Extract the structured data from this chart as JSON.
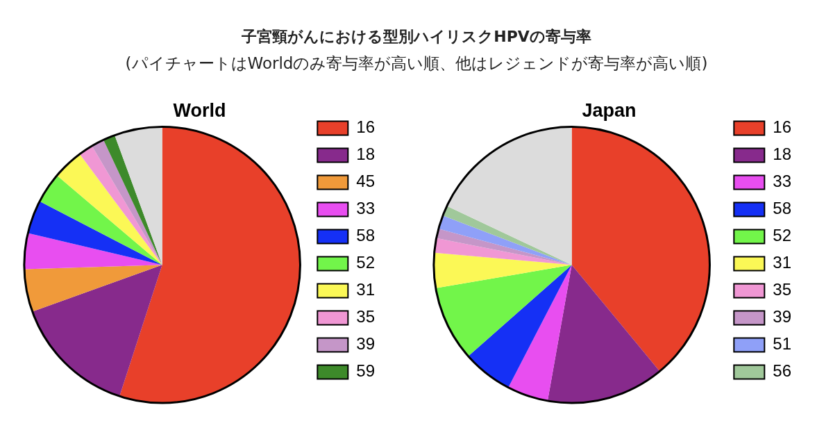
{
  "chart_data": [
    {
      "type": "pie",
      "title": "World",
      "annotations": [
        "子宮頸がんにおける型別ハイリスクHPVの寄与率",
        "(パイチャートはWorldのみ寄与率が高い順、他はレジェンドが寄与率が高い順)"
      ],
      "legend": "right",
      "categories": [
        "16",
        "18",
        "45",
        "33",
        "58",
        "52",
        "31",
        "35",
        "39",
        "59",
        null
      ],
      "values": [
        55,
        14.5,
        5,
        4.2,
        3.9,
        3.6,
        3.6,
        1.7,
        1.5,
        1.4,
        5.6
      ],
      "colors": [
        "#e8402a",
        "#872a8c",
        "#f09a3a",
        "#e84ef0",
        "#1530f5",
        "#72f54a",
        "#fbf856",
        "#f097d4",
        "#c596c8",
        "#3d8a2a",
        "#dcdcdc"
      ]
    },
    {
      "type": "pie",
      "title": "Japan",
      "legend": "right",
      "categories": [
        "16",
        "18",
        "33",
        "58",
        "52",
        "31",
        "35",
        "39",
        "51",
        "56",
        null
      ],
      "values": [
        39,
        13.8,
        4.8,
        5.9,
        8.8,
        4.1,
        1.7,
        1.1,
        1.6,
        1.2,
        18
      ],
      "colors": [
        "#e8402a",
        "#872a8c",
        "#e84ef0",
        "#1530f5",
        "#72f54a",
        "#fbf856",
        "#f097d4",
        "#c596c8",
        "#8fa0f8",
        "#a0c89a",
        "#dcdcdc"
      ]
    }
  ]
}
